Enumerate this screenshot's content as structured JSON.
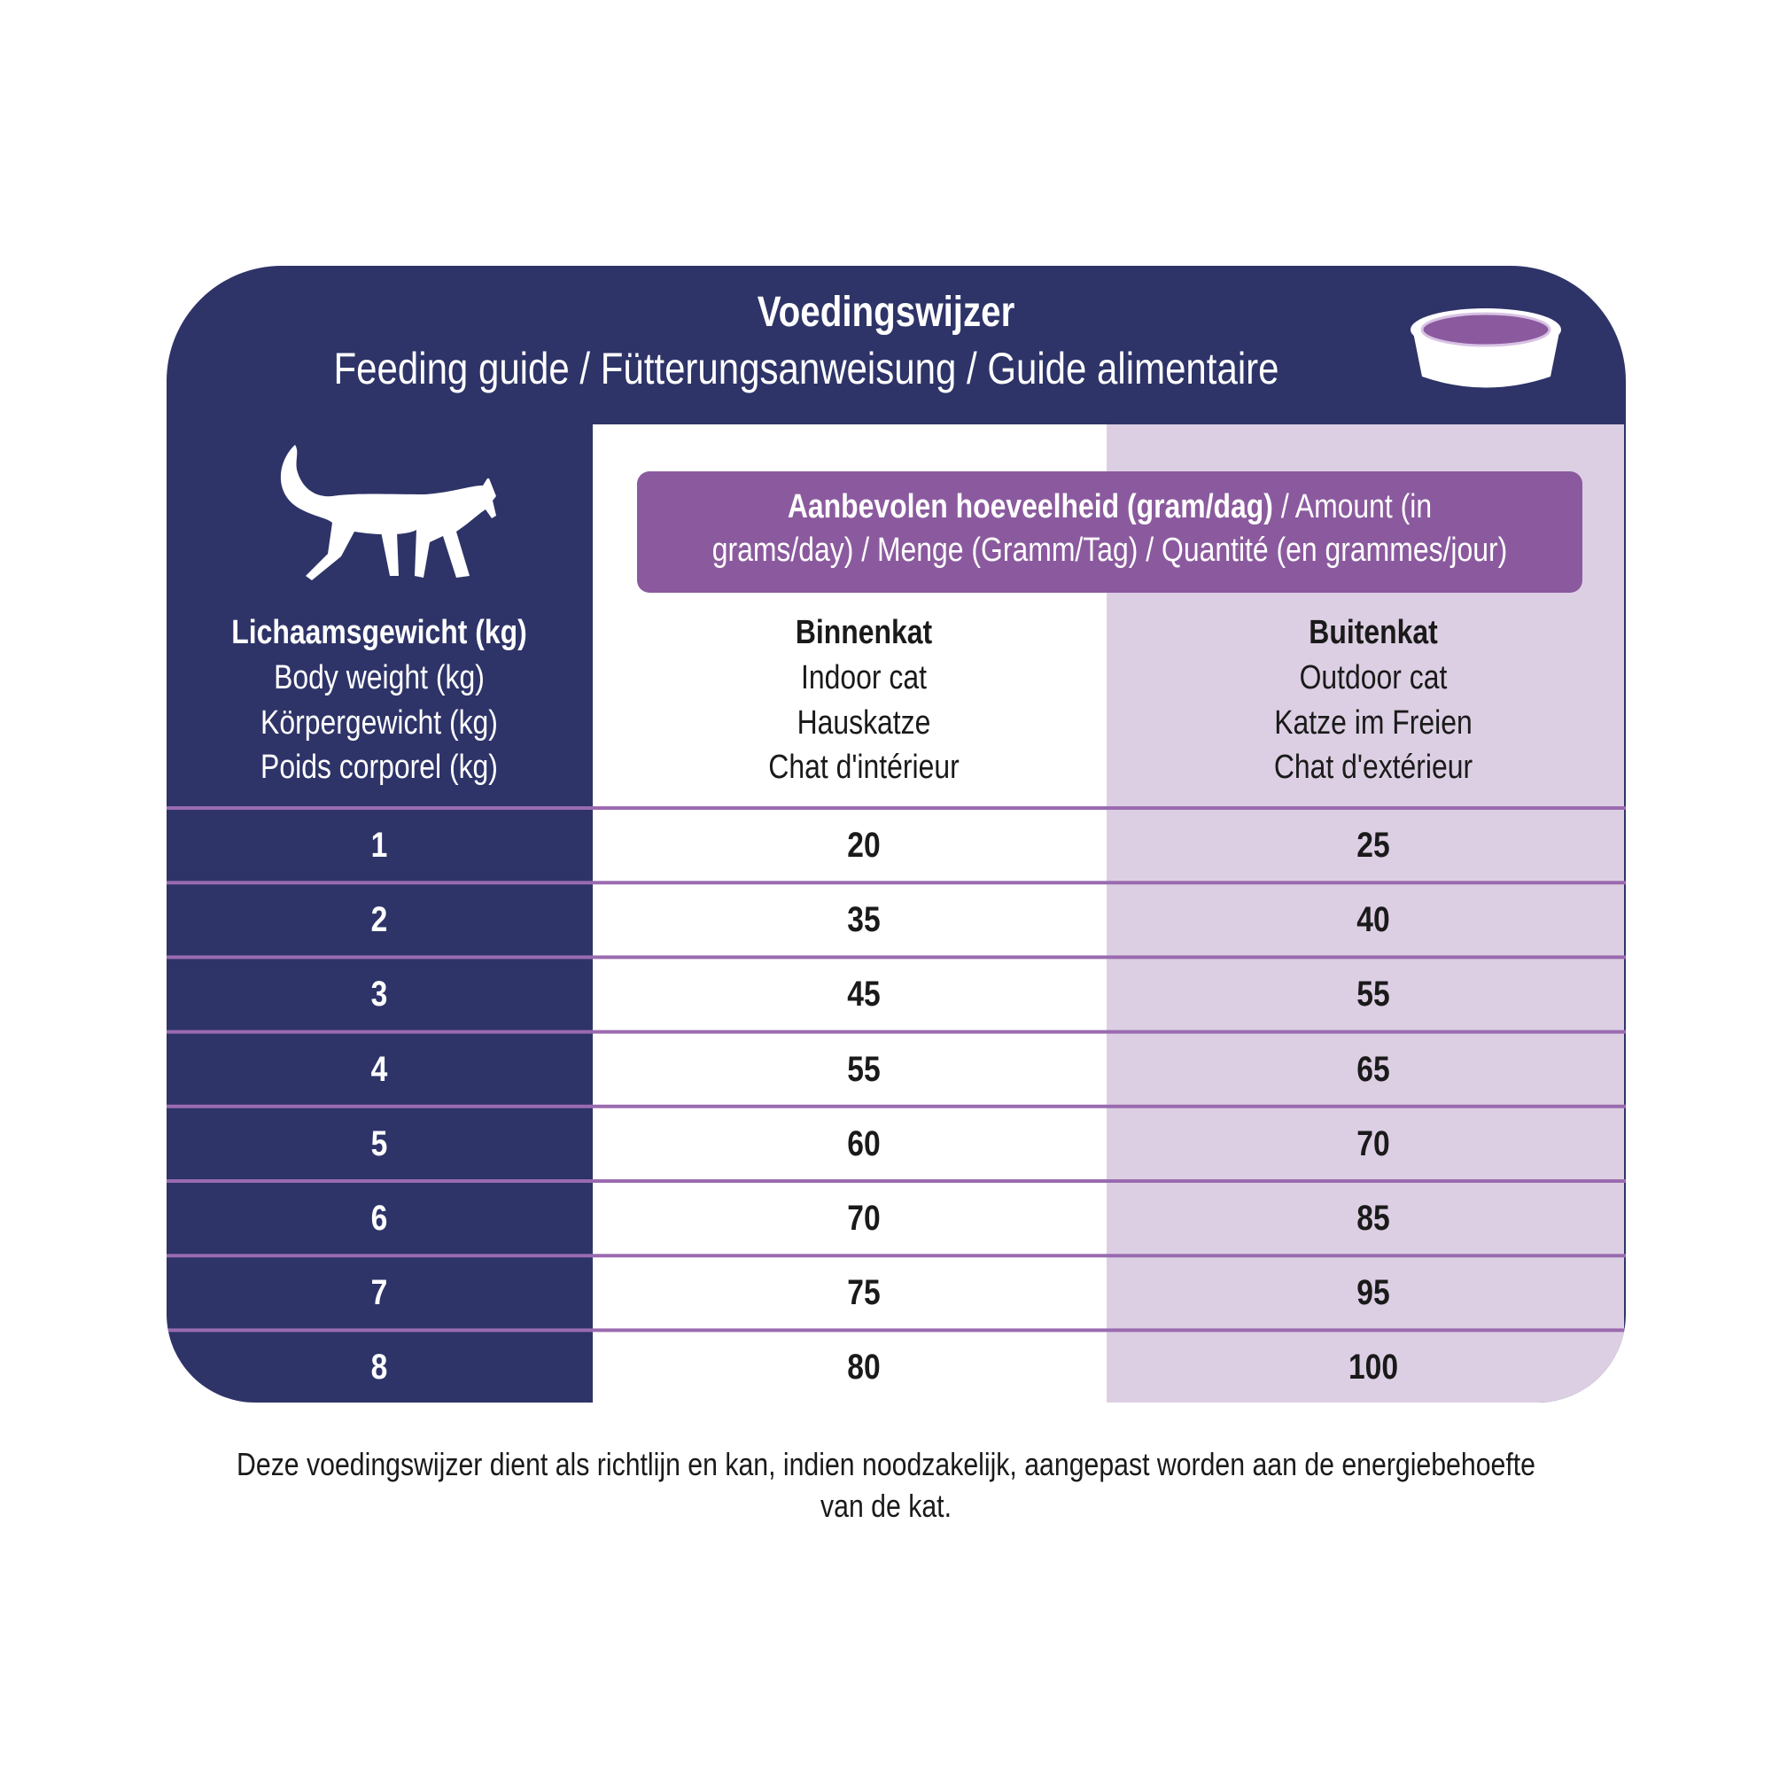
{
  "header": {
    "title": "Voedingswijzer",
    "subtitle": "Feeding guide / Fütterungsanweisung / Guide alimentaire"
  },
  "table": {
    "amount_header": {
      "bold": "Aanbevolen hoeveelheid (gram/dag)",
      "lines": [
        "/ Amount (in",
        "grams/day) / Menge (Gramm/Tag) /  Quantité (en grammes/jour)"
      ]
    },
    "columns": [
      [
        "Lichaamsgewicht (kg)",
        "Body weight (kg)",
        "Körpergewicht (kg)",
        "Poids corporel (kg)"
      ],
      [
        "Binnenkat",
        "Indoor cat",
        "Hauskatze",
        "Chat d'intérieur"
      ],
      [
        "Buitenkat",
        "Outdoor cat",
        "Katze im Freien",
        "Chat d'extérieur"
      ]
    ],
    "rows": [
      [
        1,
        20,
        25
      ],
      [
        2,
        35,
        40
      ],
      [
        3,
        45,
        55
      ],
      [
        4,
        55,
        65
      ],
      [
        5,
        60,
        70
      ],
      [
        6,
        70,
        85
      ],
      [
        7,
        75,
        95
      ],
      [
        8,
        80,
        100
      ]
    ]
  },
  "footnote": "Deze voedingswijzer dient als richtlijn en kan, indien noodzakelijk, aangepast worden aan de energiebehoefte van de kat."
}
